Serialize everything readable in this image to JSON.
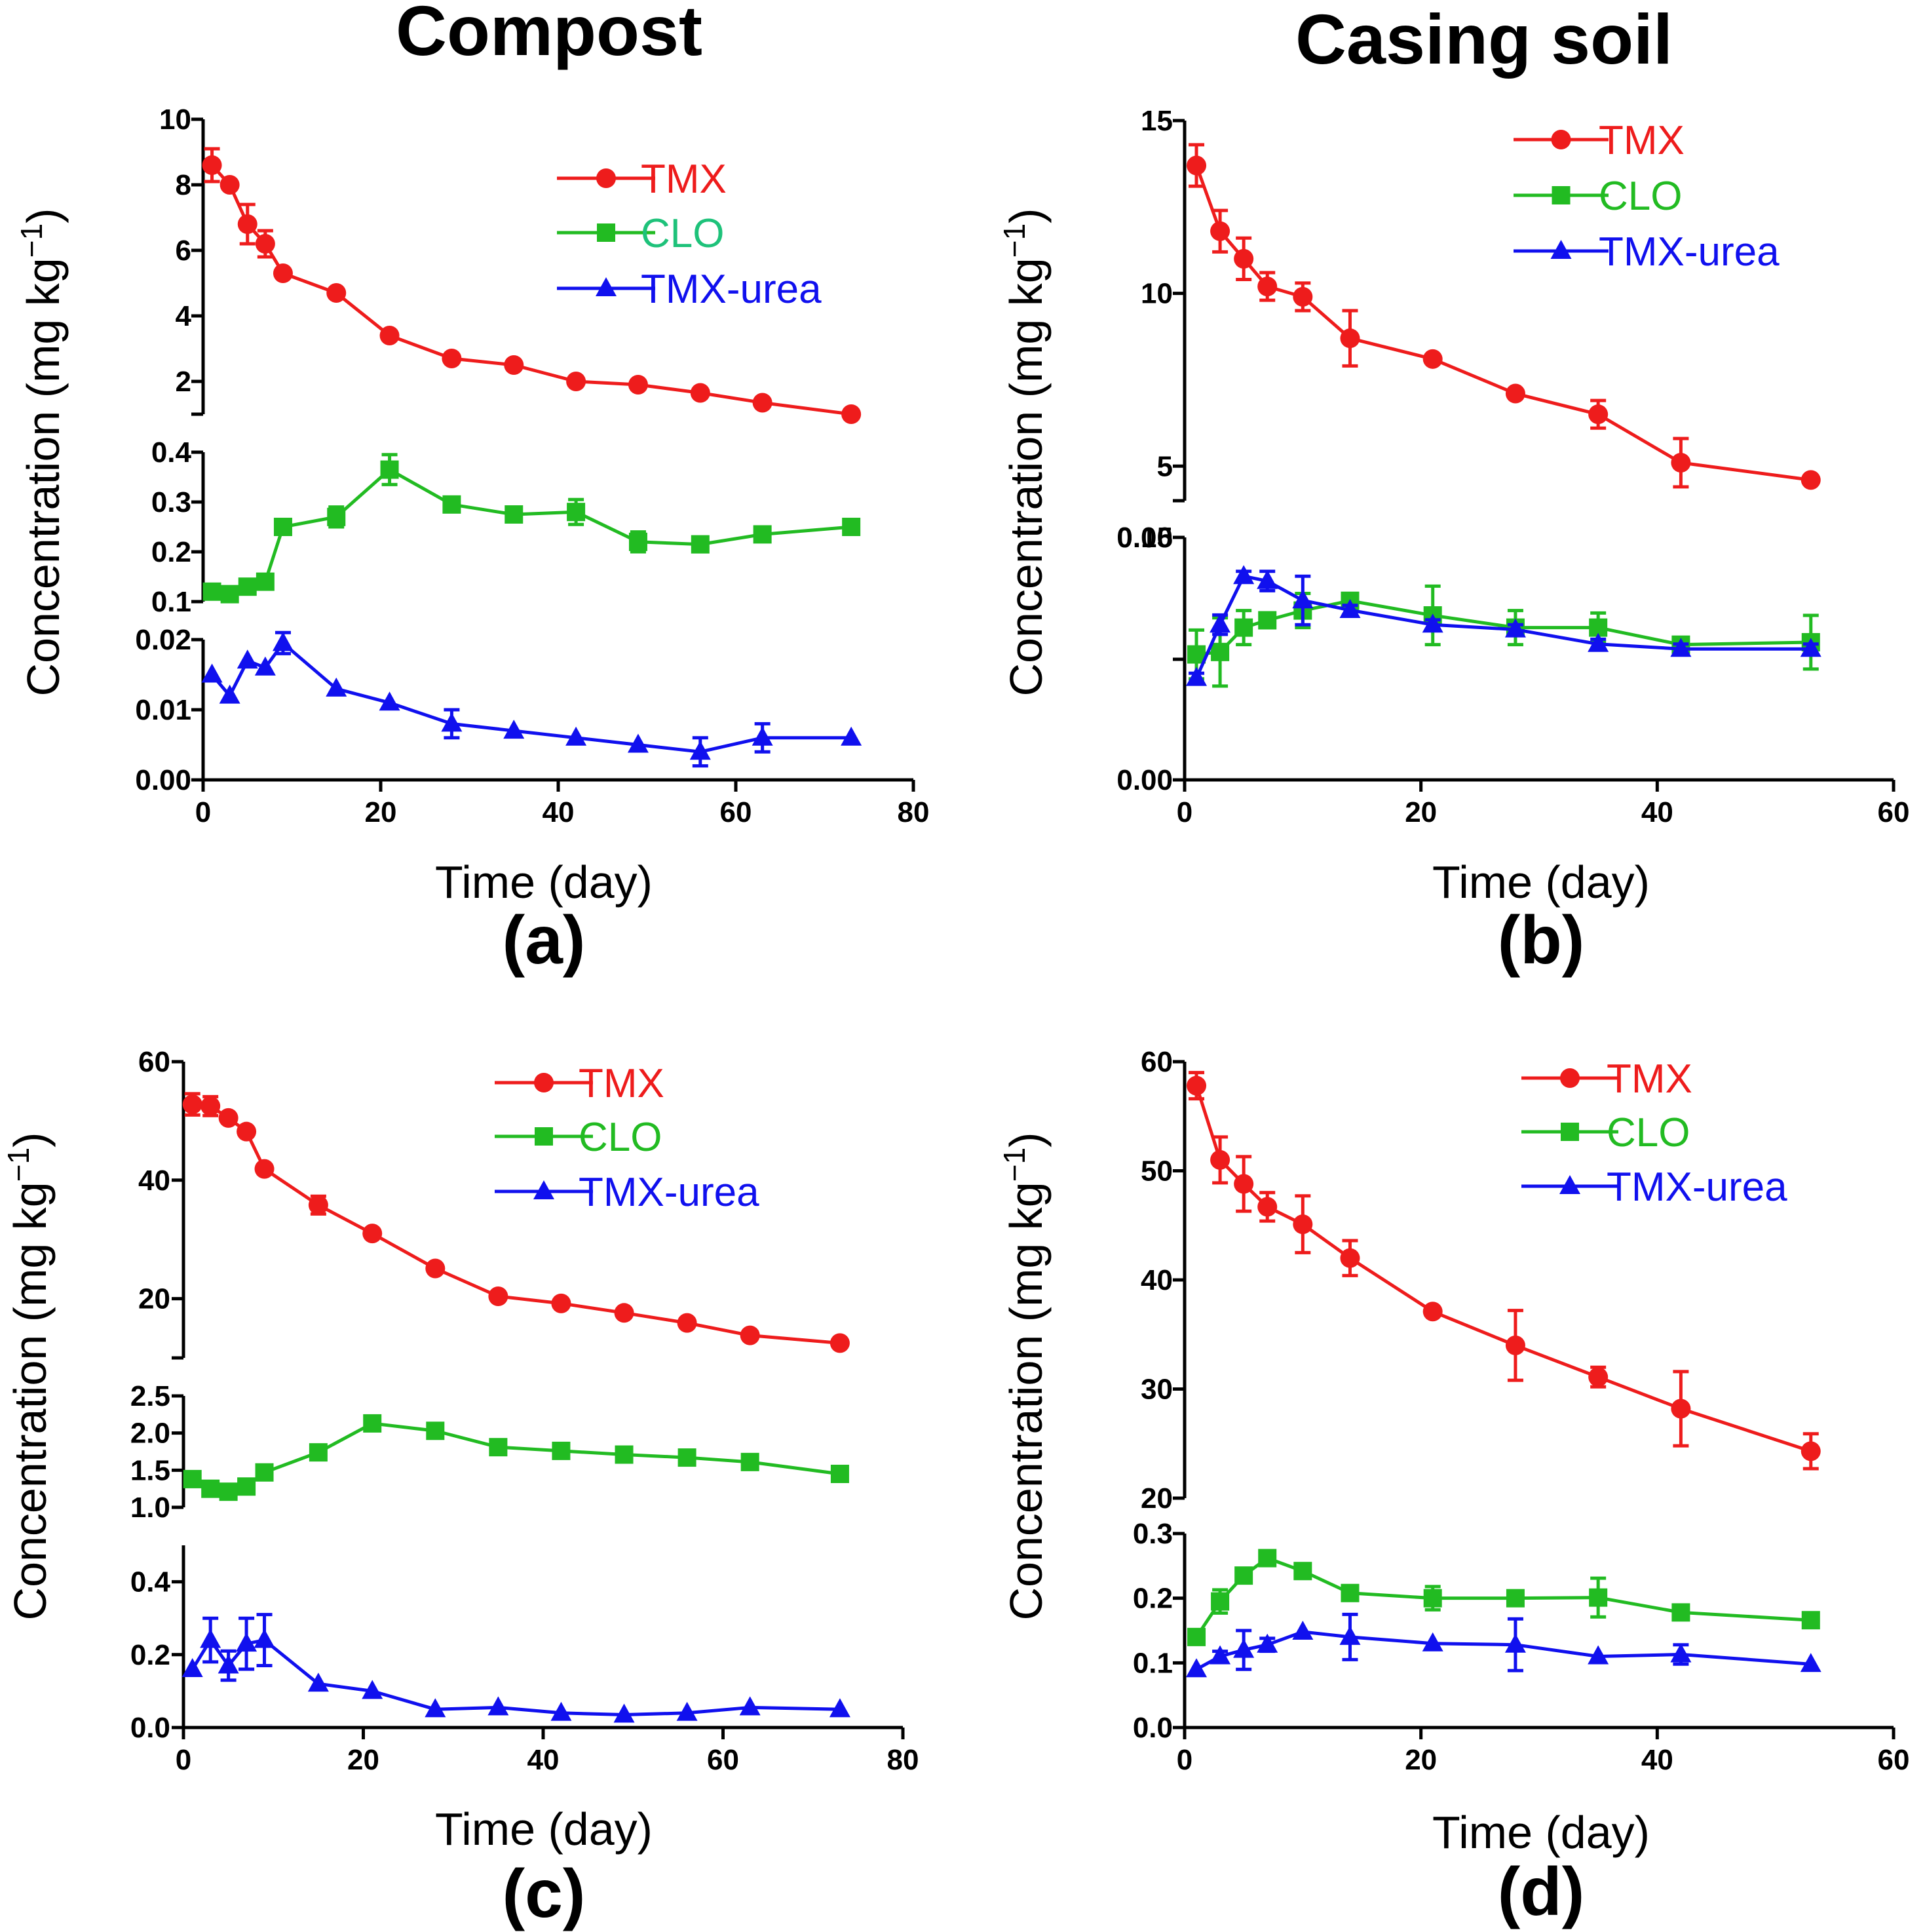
{
  "figure": {
    "column_titles": [
      "Compost",
      "Casing soil"
    ],
    "colors": {
      "TMX": "#ee1c1c",
      "CLO": "#22bb22",
      "TMX-urea": "#1010ee",
      "axis": "#000000"
    },
    "legend_labels": [
      "TMX",
      "CLO",
      "TMX-urea"
    ],
    "legend_label_colors": [
      [
        "#ee1c1c",
        "#1ec27a",
        "#1010ee"
      ],
      [
        "#ee1c1c",
        "#22bb22",
        "#1010ee"
      ],
      [
        "#ee1c1c",
        "#22bb22",
        "#1010ee"
      ],
      [
        "#ee1c1c",
        "#22bb22",
        "#1010ee"
      ]
    ]
  },
  "chart_data": [
    {
      "type": "line",
      "panel_label": "(a)",
      "column_title": "Compost",
      "xlabel": "Time (day)",
      "ylabel": "Concentration (mg kg",
      "ylabel_superscript": "−1",
      "ylabel_close": ")",
      "xlim": [
        0,
        80
      ],
      "xticks": [
        0,
        20,
        40,
        60,
        80
      ],
      "segments": [
        {
          "series": "TMX",
          "ylim": [
            1,
            10
          ],
          "yticks": [
            2,
            4,
            6,
            8,
            10
          ],
          "tick_labels": [
            "2",
            "4",
            "6",
            "8",
            "10"
          ],
          "x": [
            1,
            3,
            5,
            7,
            9,
            15,
            21,
            28,
            35,
            42,
            49,
            56,
            63,
            73
          ],
          "y": [
            8.6,
            8.0,
            6.8,
            6.2,
            5.3,
            4.7,
            3.4,
            2.7,
            2.5,
            2.0,
            1.9,
            1.65,
            1.35,
            1.0
          ],
          "err": [
            0.5,
            0.1,
            0.6,
            0.4,
            0.1,
            0.1,
            0.1,
            0.1,
            0.1,
            0.1,
            0.1,
            0.1,
            0.1,
            0.1
          ]
        },
        {
          "series": "CLO",
          "ylim": [
            0.1,
            0.4
          ],
          "yticks": [
            0.1,
            0.2,
            0.3,
            0.4
          ],
          "tick_labels": [
            "0.1",
            "0.2",
            "0.3",
            "0.4"
          ],
          "x": [
            1,
            3,
            5,
            7,
            9,
            15,
            21,
            28,
            35,
            42,
            49,
            56,
            63,
            73
          ],
          "y": [
            0.12,
            0.115,
            0.13,
            0.14,
            0.25,
            0.27,
            0.365,
            0.295,
            0.275,
            0.28,
            0.22,
            0.215,
            0.235,
            0.25
          ],
          "err": [
            0.01,
            0.01,
            0.01,
            0.01,
            0.005,
            0.02,
            0.03,
            0.005,
            0.005,
            0.025,
            0.02,
            0.005,
            0.005,
            0.005
          ]
        },
        {
          "series": "TMX-urea",
          "ylim": [
            0,
            0.02
          ],
          "yticks": [
            0,
            0.01,
            0.02
          ],
          "tick_labels": [
            "0.00",
            "0.01",
            "0.02"
          ],
          "x": [
            1,
            3,
            5,
            7,
            9,
            15,
            21,
            28,
            35,
            42,
            49,
            56,
            63,
            73
          ],
          "y": [
            0.015,
            0.012,
            0.017,
            0.016,
            0.0195,
            0.013,
            0.011,
            0.008,
            0.007,
            0.006,
            0.005,
            0.004,
            0.006,
            0.006
          ],
          "err": [
            0.0005,
            0.0005,
            0.0005,
            0.0005,
            0.0015,
            0.0003,
            0.0003,
            0.002,
            0.0003,
            0.0003,
            0.0003,
            0.002,
            0.002,
            0.0003
          ]
        }
      ]
    },
    {
      "type": "line",
      "panel_label": "(b)",
      "column_title": "Casing soil",
      "xlabel": "Time (day)",
      "ylabel": "Concentration (mg kg",
      "ylabel_superscript": "−1",
      "ylabel_close": ")",
      "xlim": [
        0,
        60
      ],
      "xticks": [
        0,
        20,
        40,
        60
      ],
      "segments": [
        {
          "series": "TMX",
          "ylim": [
            4,
            15
          ],
          "yticks": [
            5,
            10,
            15
          ],
          "tick_labels": [
            "5",
            "10",
            "15"
          ],
          "x": [
            1,
            3,
            5,
            7,
            10,
            14,
            21,
            28,
            35,
            42,
            53
          ],
          "y": [
            13.7,
            11.8,
            11.0,
            10.2,
            9.9,
            8.7,
            8.1,
            7.1,
            6.5,
            5.1,
            4.6
          ],
          "err": [
            0.6,
            0.6,
            0.6,
            0.4,
            0.4,
            0.8,
            0.1,
            0.1,
            0.4,
            0.7,
            0.1
          ]
        },
        {
          "series": "CLO",
          "ylim": [
            0.05,
            0.1
          ],
          "yticks": [
            0.05,
            0.1
          ],
          "tick_labels": [
            "",
            "0.10"
          ],
          "x": [
            1,
            3,
            5,
            7,
            10,
            14,
            21,
            28,
            35,
            42,
            53
          ],
          "y": [
            0.052,
            0.053,
            0.063,
            0.066,
            0.07,
            0.074,
            0.068,
            0.063,
            0.063,
            0.056,
            0.057
          ],
          "err": [
            0.01,
            0.014,
            0.007,
            0.003,
            0.007,
            0.002,
            0.012,
            0.007,
            0.006,
            0.001,
            0.011
          ]
        },
        {
          "series": "TMX-urea",
          "ylim": [
            0,
            0.05
          ],
          "yticks": [
            0,
            0.05
          ],
          "tick_labels": [
            "0.00",
            "0.05"
          ],
          "x": [
            1,
            3,
            5,
            7,
            10,
            14,
            21,
            28,
            35,
            42,
            53
          ],
          "y": [
            0.021,
            0.032,
            0.042,
            0.041,
            0.037,
            0.035,
            0.032,
            0.031,
            0.028,
            0.027,
            0.027
          ],
          "err": [
            0.001,
            0.002,
            0.001,
            0.002,
            0.005,
            0.001,
            0.001,
            0.001,
            0.001,
            0.001,
            0.001
          ]
        }
      ]
    },
    {
      "type": "line",
      "panel_label": "(c)",
      "column_title": "",
      "xlabel": "Time (day)",
      "ylabel": "Concentration (mg kg",
      "ylabel_superscript": "−1",
      "ylabel_close": ")",
      "xlim": [
        0,
        80
      ],
      "xticks": [
        0,
        20,
        40,
        60,
        80
      ],
      "segments": [
        {
          "series": "TMX",
          "ylim": [
            10,
            60
          ],
          "yticks": [
            20,
            40,
            60
          ],
          "tick_labels": [
            "20",
            "40",
            "60"
          ],
          "x": [
            1,
            3,
            5,
            7,
            9,
            15,
            21,
            28,
            35,
            42,
            49,
            56,
            63,
            73
          ],
          "y": [
            52.8,
            52.5,
            50.5,
            48.2,
            41.9,
            35.8,
            31.0,
            25.1,
            20.4,
            19.2,
            17.6,
            15.9,
            13.8,
            12.5
          ],
          "err": [
            1.8,
            1.6,
            0.4,
            0.4,
            0.4,
            1.5,
            0.4,
            0.4,
            0.4,
            0.4,
            0.4,
            0.4,
            0.4,
            0.4
          ]
        },
        {
          "series": "CLO",
          "ylim": [
            1.0,
            2.5
          ],
          "yticks": [
            1.0,
            1.5,
            2.0,
            2.5
          ],
          "tick_labels": [
            "1.0",
            "1.5",
            "2.0",
            "2.5"
          ],
          "x": [
            1,
            3,
            5,
            7,
            9,
            15,
            21,
            28,
            35,
            42,
            49,
            56,
            63,
            73
          ],
          "y": [
            1.38,
            1.25,
            1.21,
            1.28,
            1.47,
            1.74,
            2.13,
            2.03,
            1.81,
            1.76,
            1.71,
            1.67,
            1.61,
            1.45
          ],
          "err": [
            0.02,
            0.02,
            0.02,
            0.02,
            0.02,
            0.04,
            0.06,
            0.04,
            0.02,
            0.02,
            0.02,
            0.02,
            0.05,
            0.02
          ]
        },
        {
          "series": "TMX-urea",
          "ylim": [
            0,
            0.5
          ],
          "yticks": [
            0,
            0.2,
            0.4
          ],
          "tick_labels": [
            "0.0",
            "0.2",
            "0.4"
          ],
          "x": [
            1,
            3,
            5,
            7,
            9,
            15,
            21,
            28,
            35,
            42,
            49,
            56,
            63,
            73
          ],
          "y": [
            0.16,
            0.24,
            0.17,
            0.23,
            0.24,
            0.12,
            0.1,
            0.05,
            0.055,
            0.04,
            0.035,
            0.04,
            0.055,
            0.05
          ],
          "err": [
            0.01,
            0.06,
            0.04,
            0.07,
            0.07,
            0.01,
            0.01,
            0.01,
            0.01,
            0.01,
            0.01,
            0.01,
            0.01,
            0.01
          ]
        }
      ]
    },
    {
      "type": "line",
      "panel_label": "(d)",
      "column_title": "",
      "xlabel": "Time (day)",
      "ylabel": "Concentration (mg kg",
      "ylabel_superscript": "−1",
      "ylabel_close": ")",
      "xlim": [
        0,
        60
      ],
      "xticks": [
        0,
        20,
        40,
        60
      ],
      "segments": [
        {
          "series": "TMX",
          "ylim": [
            20,
            60
          ],
          "yticks": [
            20,
            30,
            40,
            50,
            60
          ],
          "tick_labels": [
            "20",
            "30",
            "40",
            "50",
            "60"
          ],
          "x": [
            1,
            3,
            5,
            7,
            10,
            14,
            21,
            28,
            35,
            42,
            53
          ],
          "y": [
            57.8,
            51.0,
            48.8,
            46.7,
            45.1,
            42.0,
            37.1,
            34.0,
            31.1,
            28.2,
            24.3
          ],
          "err": [
            1.2,
            2.1,
            2.5,
            1.3,
            2.6,
            1.6,
            0.3,
            3.2,
            0.9,
            3.4,
            1.6
          ]
        },
        {
          "series": "CLO",
          "ylim": [
            0,
            0.3
          ],
          "yticks": [
            0,
            0.1,
            0.2,
            0.3
          ],
          "tick_labels": [
            "0.0",
            "0.1",
            "0.2",
            "0.3"
          ],
          "x": [
            1,
            3,
            5,
            7,
            10,
            14,
            21,
            28,
            35,
            42,
            53
          ],
          "y": [
            0.14,
            0.195,
            0.235,
            0.262,
            0.242,
            0.208,
            0.2,
            0.2,
            0.201,
            0.178,
            0.166
          ],
          "err": [
            0.005,
            0.018,
            0.005,
            0.008,
            0.005,
            0.005,
            0.018,
            0.005,
            0.03,
            0.005,
            0.005
          ]
        },
        {
          "series": "TMX-urea",
          "ylim": [
            0,
            0.3
          ],
          "yticks": [],
          "tick_labels": [],
          "x": [
            1,
            3,
            5,
            7,
            10,
            14,
            21,
            28,
            35,
            42,
            53
          ],
          "y": [
            0.09,
            0.11,
            0.12,
            0.128,
            0.148,
            0.14,
            0.13,
            0.128,
            0.11,
            0.113,
            0.098
          ],
          "err": [
            0.005,
            0.008,
            0.03,
            0.01,
            0.005,
            0.035,
            0.005,
            0.04,
            0.005,
            0.015,
            0.005
          ]
        }
      ]
    }
  ]
}
